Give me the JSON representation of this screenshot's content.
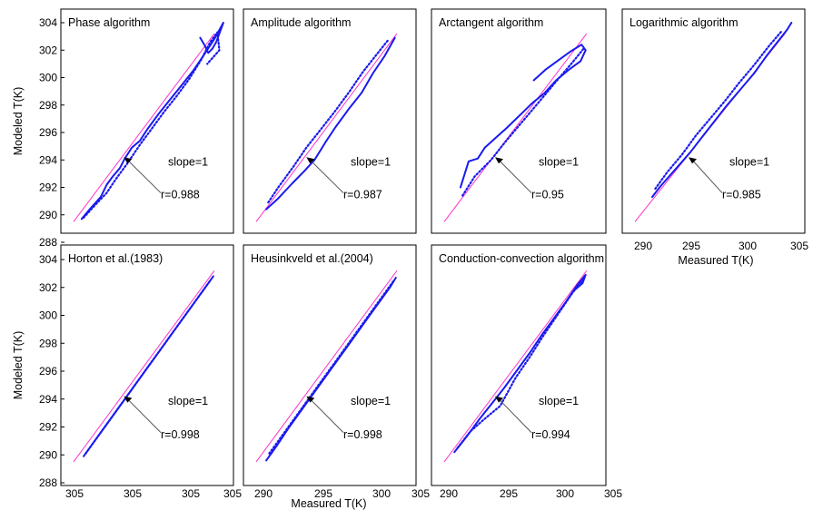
{
  "chart_data": [
    {
      "type": "line",
      "title": "Phase algorithm",
      "xlabel": "",
      "ylabel": "Modeled T(K)",
      "xticks": [],
      "yticks": [
        "288",
        "290",
        "292",
        "294",
        "296",
        "298",
        "300",
        "302",
        "304"
      ],
      "ylim": [
        288,
        305
      ],
      "xlim": [
        288,
        305
      ],
      "annotations": {
        "slope": "slope=1",
        "r": "r=0.988"
      },
      "series": [
        {
          "style": "solid",
          "x": [
            289.8,
            290.6,
            291.7,
            292.3,
            292.9,
            293.6,
            294.1,
            294.8,
            295.6,
            296.3,
            297.4,
            298.6,
            299.7,
            300.9,
            302.1,
            303.0,
            303.6,
            303.9,
            303.2,
            302.8,
            302.4,
            302.0,
            301.6
          ],
          "y": [
            289.7,
            290.4,
            291.3,
            292.2,
            292.8,
            293.4,
            294.1,
            294.9,
            295.4,
            296.2,
            297.3,
            298.4,
            299.4,
            300.5,
            301.8,
            302.8,
            303.6,
            304.0,
            302.6,
            302.1,
            301.8,
            302.4,
            302.9
          ]
        },
        {
          "style": "dotted",
          "x": [
            290.0,
            291.0,
            292.3,
            293.2,
            294.3,
            295.6,
            296.8,
            298.0,
            299.3,
            300.5,
            301.7,
            302.6,
            303.3,
            303.5,
            302.3
          ],
          "y": [
            289.8,
            290.6,
            291.6,
            292.6,
            293.7,
            295.1,
            296.3,
            297.5,
            298.7,
            299.9,
            301.3,
            302.6,
            303.3,
            302.0,
            301.0
          ]
        }
      ]
    },
    {
      "type": "line",
      "title": "Amplitude algorithm",
      "xlabel": "",
      "ylabel": "",
      "xticks": [],
      "yticks": [],
      "ylim": [
        288,
        305
      ],
      "xlim": [
        288,
        305
      ],
      "annotations": {
        "slope": "slope=1",
        "r": "r=0.987"
      },
      "series": [
        {
          "style": "solid",
          "x": [
            290.0,
            291.2,
            292.6,
            293.8,
            294.8,
            295.9,
            296.9,
            298.2,
            299.5,
            300.6,
            301.8,
            302.8
          ],
          "y": [
            290.4,
            291.2,
            292.3,
            293.2,
            294.0,
            295.3,
            296.4,
            297.7,
            298.9,
            300.3,
            301.6,
            302.9
          ]
        },
        {
          "style": "dotted",
          "x": [
            290.2,
            291.2,
            292.7,
            294.0,
            295.4,
            296.9,
            298.3,
            299.6,
            301.0,
            302.2
          ],
          "y": [
            290.9,
            292.0,
            293.5,
            294.9,
            296.2,
            297.6,
            299.0,
            300.4,
            301.7,
            302.8
          ]
        }
      ]
    },
    {
      "type": "line",
      "title": "Arctangent algorithm",
      "xlabel": "",
      "ylabel": "",
      "xticks": [],
      "yticks": [],
      "ylim": [
        288,
        305
      ],
      "xlim": [
        288,
        305
      ],
      "annotations": {
        "slope": "slope=1",
        "r": "r=0.95"
      },
      "series": [
        {
          "style": "solid",
          "x": [
            290.6,
            291.4,
            292.3,
            293.0,
            294.2,
            295.1,
            296.5,
            297.6,
            298.9,
            300.0,
            301.3,
            302.4,
            302.9,
            302.5,
            301.4,
            300.1,
            299.0,
            297.8
          ],
          "y": [
            292.0,
            293.9,
            294.1,
            294.9,
            295.7,
            296.3,
            297.3,
            298.1,
            298.9,
            299.8,
            300.6,
            301.2,
            302.0,
            302.4,
            301.9,
            301.2,
            300.6,
            299.8
          ]
        },
        {
          "style": "dotted",
          "x": [
            290.8,
            292.0,
            293.6,
            295.1,
            296.7,
            298.4,
            300.1,
            301.6,
            302.7
          ],
          "y": [
            291.4,
            292.8,
            294.0,
            295.4,
            296.8,
            298.3,
            299.8,
            301.1,
            302.1
          ]
        }
      ]
    },
    {
      "type": "line",
      "title": "Logarithmic algorithm",
      "xlabel": "Measured T(K)",
      "ylabel": "",
      "xticks": [
        "290",
        "295",
        "300",
        "305"
      ],
      "yticks": [],
      "ylim": [
        288,
        305
      ],
      "xlim": [
        288,
        305
      ],
      "annotations": {
        "slope": "slope=1",
        "r": "r=0.985"
      },
      "series": [
        {
          "style": "solid",
          "x": [
            290.6,
            291.4,
            292.3,
            293.2,
            294.2,
            295.3,
            296.4,
            297.5,
            298.8,
            300.1,
            301.3,
            302.4,
            303.2,
            303.6
          ],
          "y": [
            291.3,
            292.1,
            292.9,
            293.7,
            294.6,
            295.7,
            296.8,
            297.9,
            299.1,
            300.3,
            301.6,
            302.7,
            303.5,
            304.0
          ]
        },
        {
          "style": "dotted",
          "x": [
            290.9,
            292.0,
            293.4,
            294.7,
            296.0,
            297.4,
            298.7,
            300.1,
            301.5,
            302.7
          ],
          "y": [
            291.9,
            293.1,
            294.4,
            295.8,
            297.0,
            298.3,
            299.6,
            300.9,
            302.3,
            303.4
          ]
        }
      ]
    },
    {
      "type": "line",
      "title": "Horton et al.(1983)",
      "xlabel": "",
      "ylabel": "Modeled T(K)",
      "xticks": [
        "305",
        "305",
        "305",
        "305"
      ],
      "yticks": [
        "288",
        "290",
        "292",
        "294",
        "296",
        "298",
        "300",
        "302",
        "304"
      ],
      "ylim": [
        288,
        305
      ],
      "xlim": [
        288,
        305
      ],
      "annotations": {
        "slope": "slope=1",
        "r": "r=0.998"
      },
      "series": [
        {
          "style": "solid",
          "x": [
            290.0,
            291.0,
            292.2,
            293.4,
            294.7,
            296.0,
            297.3,
            298.6,
            299.8,
            301.0,
            302.2,
            302.9
          ],
          "y": [
            289.9,
            290.9,
            292.1,
            293.3,
            294.6,
            295.9,
            297.2,
            298.5,
            299.7,
            300.9,
            302.1,
            302.8
          ]
        },
        {
          "style": "dotted",
          "x": [
            290.2,
            291.5,
            292.9,
            294.3,
            295.7,
            297.1,
            298.5,
            299.9,
            301.3,
            302.6
          ],
          "y": [
            290.1,
            291.4,
            292.8,
            294.2,
            295.6,
            297.0,
            298.4,
            299.8,
            301.2,
            302.5
          ]
        }
      ]
    },
    {
      "type": "line",
      "title": "Heusinkveld et al.(2004)",
      "xlabel": "Measured T(K)",
      "ylabel": "",
      "xticks": [
        "290",
        "295",
        "300",
        "305"
      ],
      "yticks": [],
      "ylim": [
        288,
        305
      ],
      "xlim": [
        288,
        305
      ],
      "annotations": {
        "slope": "slope=1",
        "r": "r=0.998"
      },
      "series": [
        {
          "style": "solid",
          "x": [
            290.0,
            291.1,
            292.3,
            293.6,
            294.9,
            296.2,
            297.5,
            298.8,
            300.0,
            301.2,
            302.3,
            302.9
          ],
          "y": [
            289.6,
            290.7,
            292.0,
            293.3,
            294.6,
            295.9,
            297.2,
            298.5,
            299.7,
            300.9,
            302.0,
            302.7
          ]
        },
        {
          "style": "dotted",
          "x": [
            290.3,
            291.7,
            293.1,
            294.5,
            295.9,
            297.3,
            298.7,
            300.1,
            301.5,
            302.7
          ],
          "y": [
            290.1,
            291.5,
            292.9,
            294.3,
            295.7,
            297.1,
            298.5,
            299.9,
            301.3,
            302.5
          ]
        }
      ]
    },
    {
      "type": "line",
      "title": "Conduction-convection algorithm",
      "xlabel": "",
      "ylabel": "",
      "xticks": [
        "290",
        "295",
        "300",
        "305"
      ],
      "yticks": [],
      "ylim": [
        288,
        305
      ],
      "xlim": [
        288,
        305
      ],
      "annotations": {
        "slope": "slope=1",
        "r": "r=0.994"
      },
      "series": [
        {
          "style": "solid",
          "x": [
            290.0,
            291.2,
            292.4,
            293.6,
            294.9,
            296.1,
            297.4,
            298.6,
            299.8,
            301.0,
            302.1,
            302.9,
            302.6,
            301.8
          ],
          "y": [
            290.2,
            291.3,
            292.5,
            293.6,
            294.8,
            296.0,
            297.3,
            298.6,
            299.8,
            301.0,
            302.2,
            302.9,
            302.3,
            301.8
          ]
        },
        {
          "style": "dotted",
          "x": [
            290.3,
            291.6,
            293.0,
            294.5,
            296.0,
            297.4,
            298.8,
            300.2,
            301.6,
            302.8
          ],
          "y": [
            290.5,
            291.7,
            292.6,
            293.5,
            295.5,
            297.0,
            298.6,
            300.1,
            301.6,
            302.7
          ]
        }
      ]
    }
  ]
}
